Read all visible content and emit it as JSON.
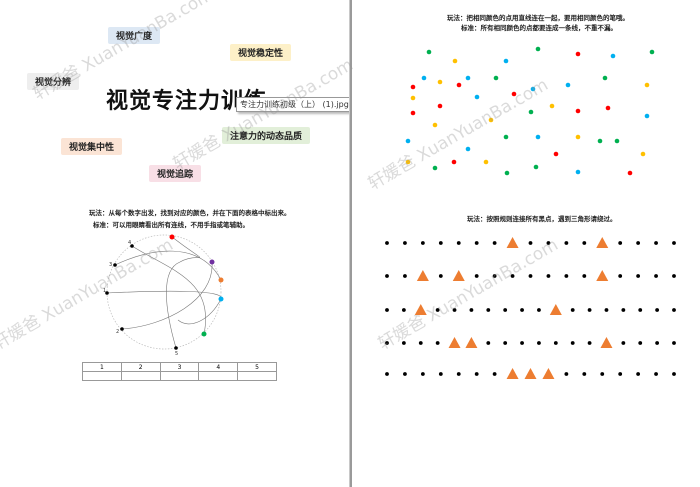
{
  "watermark": "轩媛爸 XuanYuanBa.com",
  "left_page": {
    "title": "视觉专注力训练",
    "tooltip": "专注力训练初级（上） (1).jpg",
    "tags": [
      {
        "label": "视觉广度",
        "color": "#dde8f4"
      },
      {
        "label": "视觉稳定性",
        "color": "#fdf0c8"
      },
      {
        "label": "视觉分辨",
        "color": "#eeeeee"
      },
      {
        "label": "注意力的动态品质",
        "color": "#e2efd9"
      },
      {
        "label": "视觉集中性",
        "color": "#fbe4d5"
      },
      {
        "label": "视觉追踪",
        "color": "#f8dfe6"
      }
    ],
    "instruction_1": "玩法：从每个数字出发，找到对应的颜色，并在下面的表格中标出来。",
    "instruction_2": "标准：可以用眼睛看出所有连线，不用手指或笔辅助。",
    "number_labels": [
      "1",
      "2",
      "3",
      "4",
      "5"
    ],
    "color_points": [
      "#ff0000",
      "#7030a0",
      "#ed7d31",
      "#00b0f0",
      "#00b050"
    ],
    "table_headers": [
      "1",
      "2",
      "3",
      "4",
      "5"
    ]
  },
  "right_page": {
    "instruction_1": "玩法：把相同颜色的点用直线连在一起，要用相同颜色的笔哦。",
    "instruction_2": "标准：所有相同颜色的点都要连成一条线，不重不漏。",
    "instruction_3": "玩法：按照规则连接所有黑点，遇到三角形请绕过。",
    "dot_colors": {
      "green": "#00b050",
      "yellow": "#ffc000",
      "blue": "#00b0f0",
      "red": "#ff0000"
    },
    "triangle_color": "#ed7d31",
    "dot_rows": [
      "•••••••▲••••▲••••",
      "••▲•▲•••••••▲••••",
      "••▲•••••••▲•••••••",
      "••••▲▲•••••••▲••••",
      "•••••••▲▲▲•••••••"
    ]
  }
}
